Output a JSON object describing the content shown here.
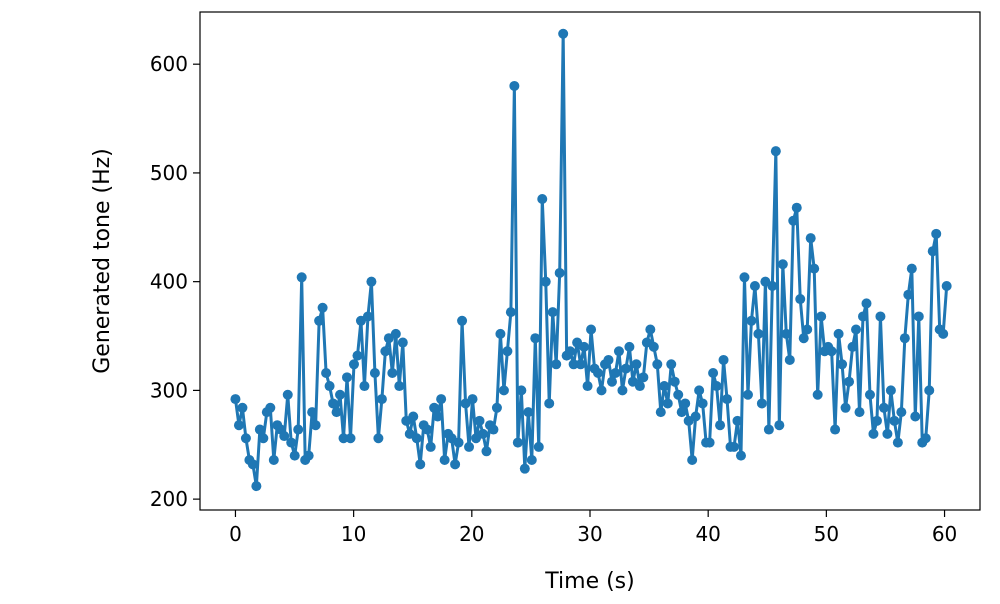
{
  "chart_data": {
    "type": "line",
    "title": "",
    "xlabel": "Time (s)",
    "ylabel": "Generated tone (Hz)",
    "xlim": [
      -3,
      63
    ],
    "ylim": [
      190,
      648
    ],
    "xticks": [
      0,
      10,
      20,
      30,
      40,
      50,
      60
    ],
    "yticks": [
      200,
      300,
      400,
      500,
      600
    ],
    "grid": false,
    "color": "#1f77b4",
    "marker": "circle",
    "x_start": 0,
    "x_step": 0.295,
    "series": [
      {
        "name": "tone",
        "values": [
          292,
          268,
          284,
          256,
          236,
          232,
          212,
          264,
          256,
          280,
          284,
          236,
          268,
          264,
          258,
          296,
          252,
          240,
          264,
          404,
          236,
          240,
          280,
          268,
          364,
          376,
          316,
          304,
          288,
          280,
          296,
          256,
          312,
          256,
          324,
          332,
          364,
          304,
          368,
          400,
          316,
          256,
          292,
          336,
          348,
          316,
          352,
          304,
          344,
          272,
          260,
          276,
          256,
          232,
          268,
          264,
          248,
          284,
          276,
          292,
          236,
          260,
          256,
          232,
          252,
          364,
          288,
          248,
          292,
          256,
          272,
          260,
          244,
          268,
          264,
          284,
          352,
          300,
          336,
          372,
          580,
          252,
          300,
          228,
          280,
          236,
          348,
          248,
          476,
          400,
          288,
          372,
          324,
          408,
          628,
          332,
          336,
          324,
          344,
          324,
          340,
          304,
          356,
          320,
          316,
          300,
          324,
          328,
          308,
          316,
          336,
          300,
          320,
          340,
          308,
          324,
          304,
          312,
          344,
          356,
          340,
          324,
          280,
          304,
          288,
          324,
          308,
          296,
          280,
          288,
          272,
          236,
          276,
          300,
          288,
          252,
          252,
          316,
          304,
          268,
          328,
          292,
          248,
          248,
          272,
          240,
          404,
          296,
          364,
          396,
          352,
          288,
          400,
          264,
          396,
          520,
          268,
          416,
          352,
          328,
          456,
          468,
          384,
          348,
          356,
          440,
          412,
          296,
          368,
          336,
          340,
          336,
          264,
          352,
          324,
          284,
          308,
          340,
          356,
          280,
          368,
          380,
          296,
          260,
          272,
          368,
          284,
          260,
          300,
          272,
          252,
          280,
          348,
          388,
          412,
          276,
          368,
          252,
          256,
          300,
          428,
          444,
          356,
          352,
          396
        ]
      }
    ]
  }
}
